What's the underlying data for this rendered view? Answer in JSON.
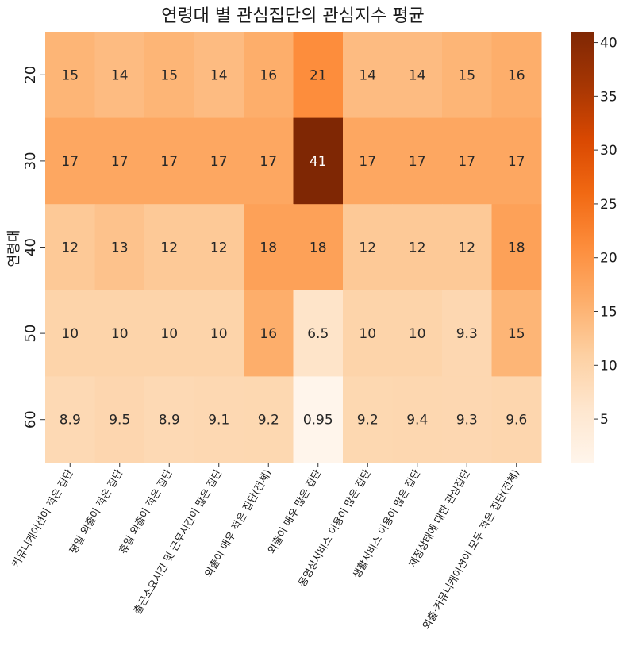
{
  "chart_data": {
    "type": "heatmap",
    "title": "연령대 별 관심집단의 관심지수 평균",
    "xlabel": "",
    "ylabel": "연령대",
    "rows": [
      "20",
      "30",
      "40",
      "50",
      "60"
    ],
    "columns": [
      "커뮤니케이션이 적은 집단",
      "평일 외출이 적은 집단",
      "휴일 외출이 적은 집단",
      "출근소요시간 및 근무시간이 많은 집단",
      "외출이 매우 적은 집단(전체)",
      "외출이 매우 많은 집단",
      "동영상서비스 이용이 많은 집단",
      "생활서비스 이용이 많은 집단",
      "재정상태에 대한 관심집단",
      "외출·커뮤니케이션이 모두 적은 집단(전체)"
    ],
    "values": [
      [
        15,
        14,
        15,
        14,
        16,
        21,
        14,
        14,
        15,
        16
      ],
      [
        17,
        17,
        17,
        17,
        17,
        41,
        17,
        17,
        17,
        17
      ],
      [
        12,
        13,
        12,
        12,
        18,
        18,
        12,
        12,
        12,
        18
      ],
      [
        10,
        10,
        10,
        10,
        16,
        6.5,
        10,
        10,
        9.3,
        15
      ],
      [
        8.9,
        9.5,
        8.9,
        9.1,
        9.2,
        0.95,
        9.2,
        9.4,
        9.3,
        9.6
      ]
    ],
    "annotations": [
      [
        "15",
        "14",
        "15",
        "14",
        "16",
        "21",
        "14",
        "14",
        "15",
        "16"
      ],
      [
        "17",
        "17",
        "17",
        "17",
        "17",
        "41",
        "17",
        "17",
        "17",
        "17"
      ],
      [
        "12",
        "13",
        "12",
        "12",
        "18",
        "18",
        "12",
        "12",
        "12",
        "18"
      ],
      [
        "10",
        "10",
        "10",
        "10",
        "16",
        "6.5",
        "10",
        "10",
        "9.3",
        "15"
      ],
      [
        "8.9",
        "9.5",
        "8.9",
        "9.1",
        "9.2",
        "0.95",
        "9.2",
        "9.4",
        "9.3",
        "9.6"
      ]
    ],
    "colormap": "Oranges",
    "value_range": [
      0.95,
      41
    ],
    "colorbar_ticks": [
      5,
      10,
      15,
      20,
      25,
      30,
      35,
      40
    ],
    "colorbar_tick_labels": [
      "5",
      "10",
      "15",
      "20",
      "25",
      "30",
      "35",
      "40"
    ],
    "colors": [
      "#fff5eb",
      "#fee6ce",
      "#fdd0a2",
      "#fdae6b",
      "#fd8d3c",
      "#f16913",
      "#d94801",
      "#a63603",
      "#7f2704"
    ],
    "dark_text_color": "#262626",
    "light_text_color": "#ffffff"
  }
}
